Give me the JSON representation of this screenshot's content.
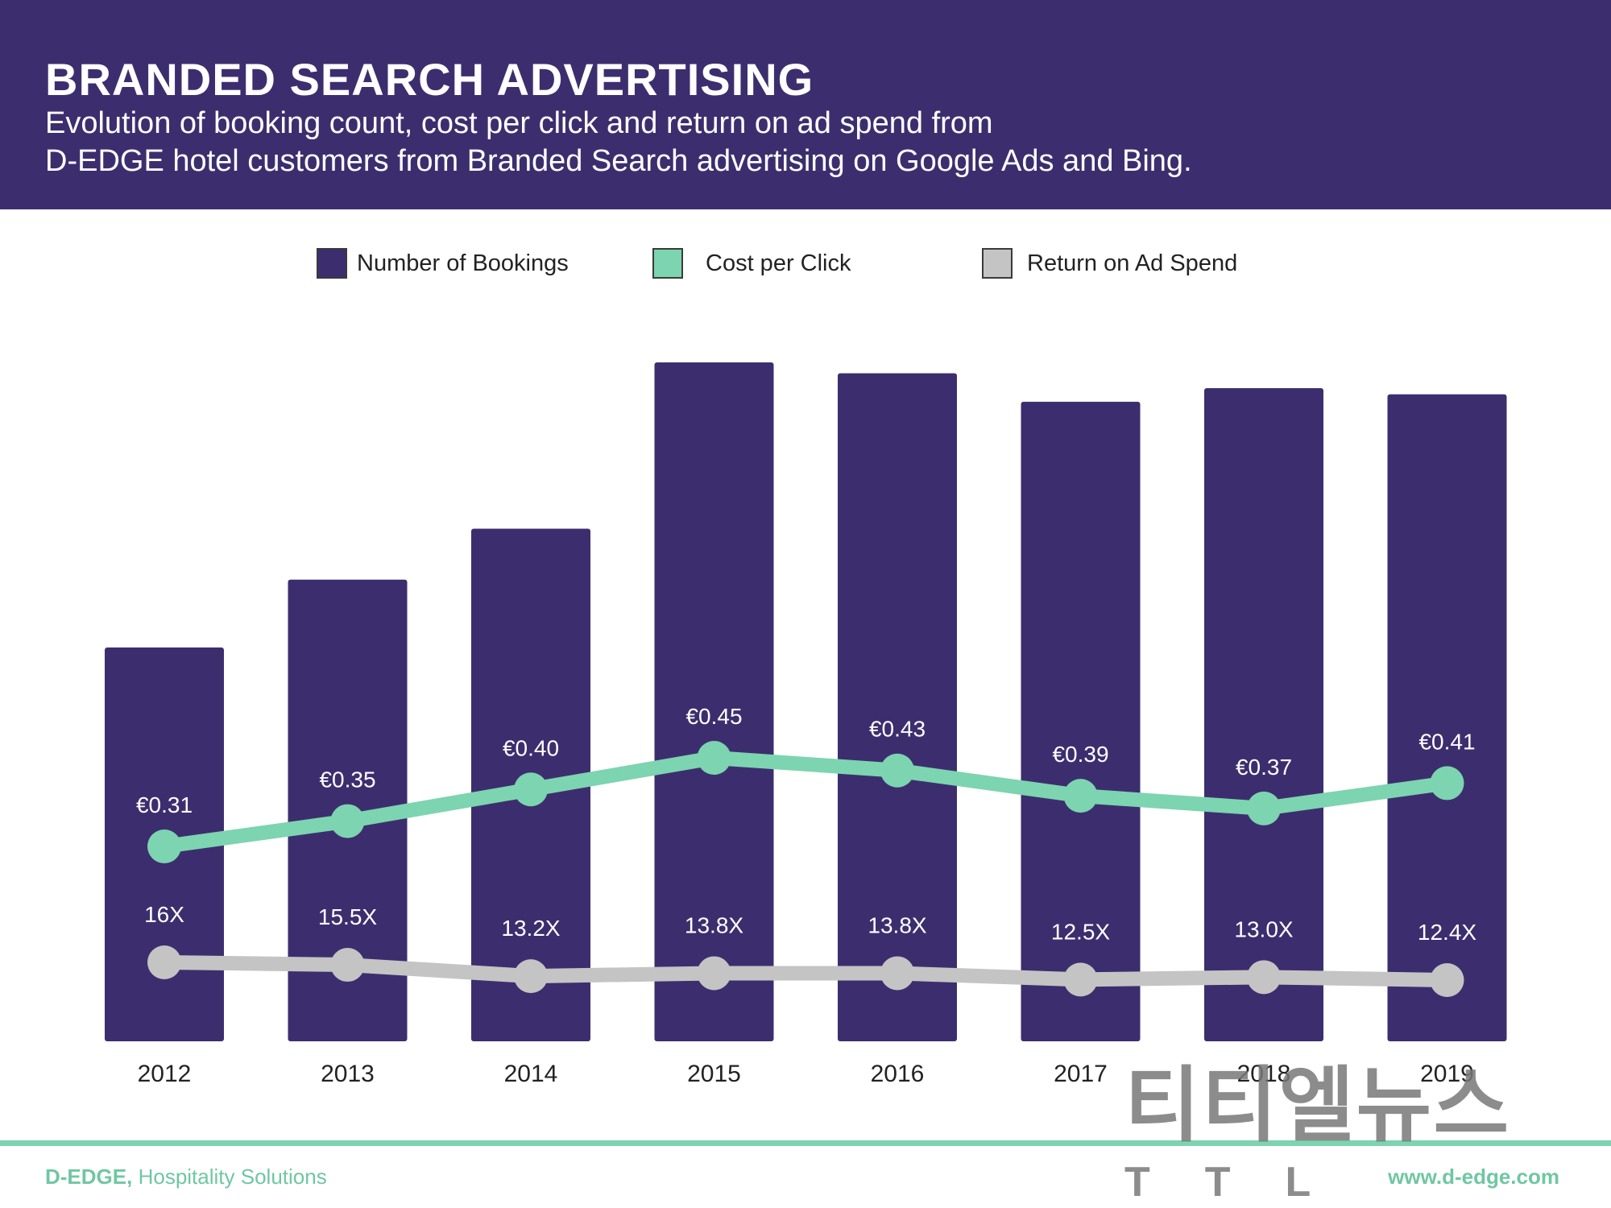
{
  "header": {
    "title": "BRANDED SEARCH ADVERTISING",
    "subtitle_line1": "Evolution of booking count, cost per click and return on ad spend from",
    "subtitle_line2": "D-EDGE hotel customers from Branded Search advertising on Google Ads and Bing."
  },
  "legend": {
    "items": [
      {
        "label": "Number of Bookings",
        "color": "#3c2e6e"
      },
      {
        "label": "Cost per Click",
        "color": "#7dd4b0"
      },
      {
        "label": "Return on Ad Spend",
        "color": "#c4c4c4"
      }
    ]
  },
  "chart_data": {
    "type": "bar",
    "categories": [
      "2012",
      "2013",
      "2014",
      "2015",
      "2016",
      "2017",
      "2018",
      "2019"
    ],
    "series": [
      {
        "name": "Number of Bookings",
        "type": "bar",
        "color": "#3c2e6e",
        "values": [
          58,
          68,
          75.5,
          100,
          98.4,
          94.2,
          96.2,
          95.3
        ]
      },
      {
        "name": "Cost per Click",
        "type": "line",
        "color": "#7dd4b0",
        "values": [
          0.31,
          0.35,
          0.4,
          0.45,
          0.43,
          0.39,
          0.37,
          0.41
        ],
        "labels": [
          "€0.31",
          "€0.35",
          "€0.40",
          "€0.45",
          "€0.43",
          "€0.39",
          "€0.37",
          "€0.41"
        ]
      },
      {
        "name": "Return on Ad Spend",
        "type": "line",
        "color": "#c4c4c4",
        "values": [
          16,
          15.5,
          13.2,
          13.8,
          13.8,
          12.5,
          13.0,
          12.4
        ],
        "labels": [
          "16X",
          "15.5X",
          "13.2X",
          "13.8X",
          "13.8X",
          "12.5X",
          "13.0X",
          "12.4X"
        ]
      }
    ],
    "title": "BRANDED SEARCH ADVERTISING",
    "xlabel": "",
    "ylabel": "",
    "grid": false,
    "legend_position": "top"
  },
  "footer": {
    "brand": "D-EDGE,",
    "tagline": "Hospitality Solutions",
    "url": "www.d-edge.com"
  },
  "watermark": {
    "text": "티티엘뉴스",
    "sub": "TTL"
  }
}
